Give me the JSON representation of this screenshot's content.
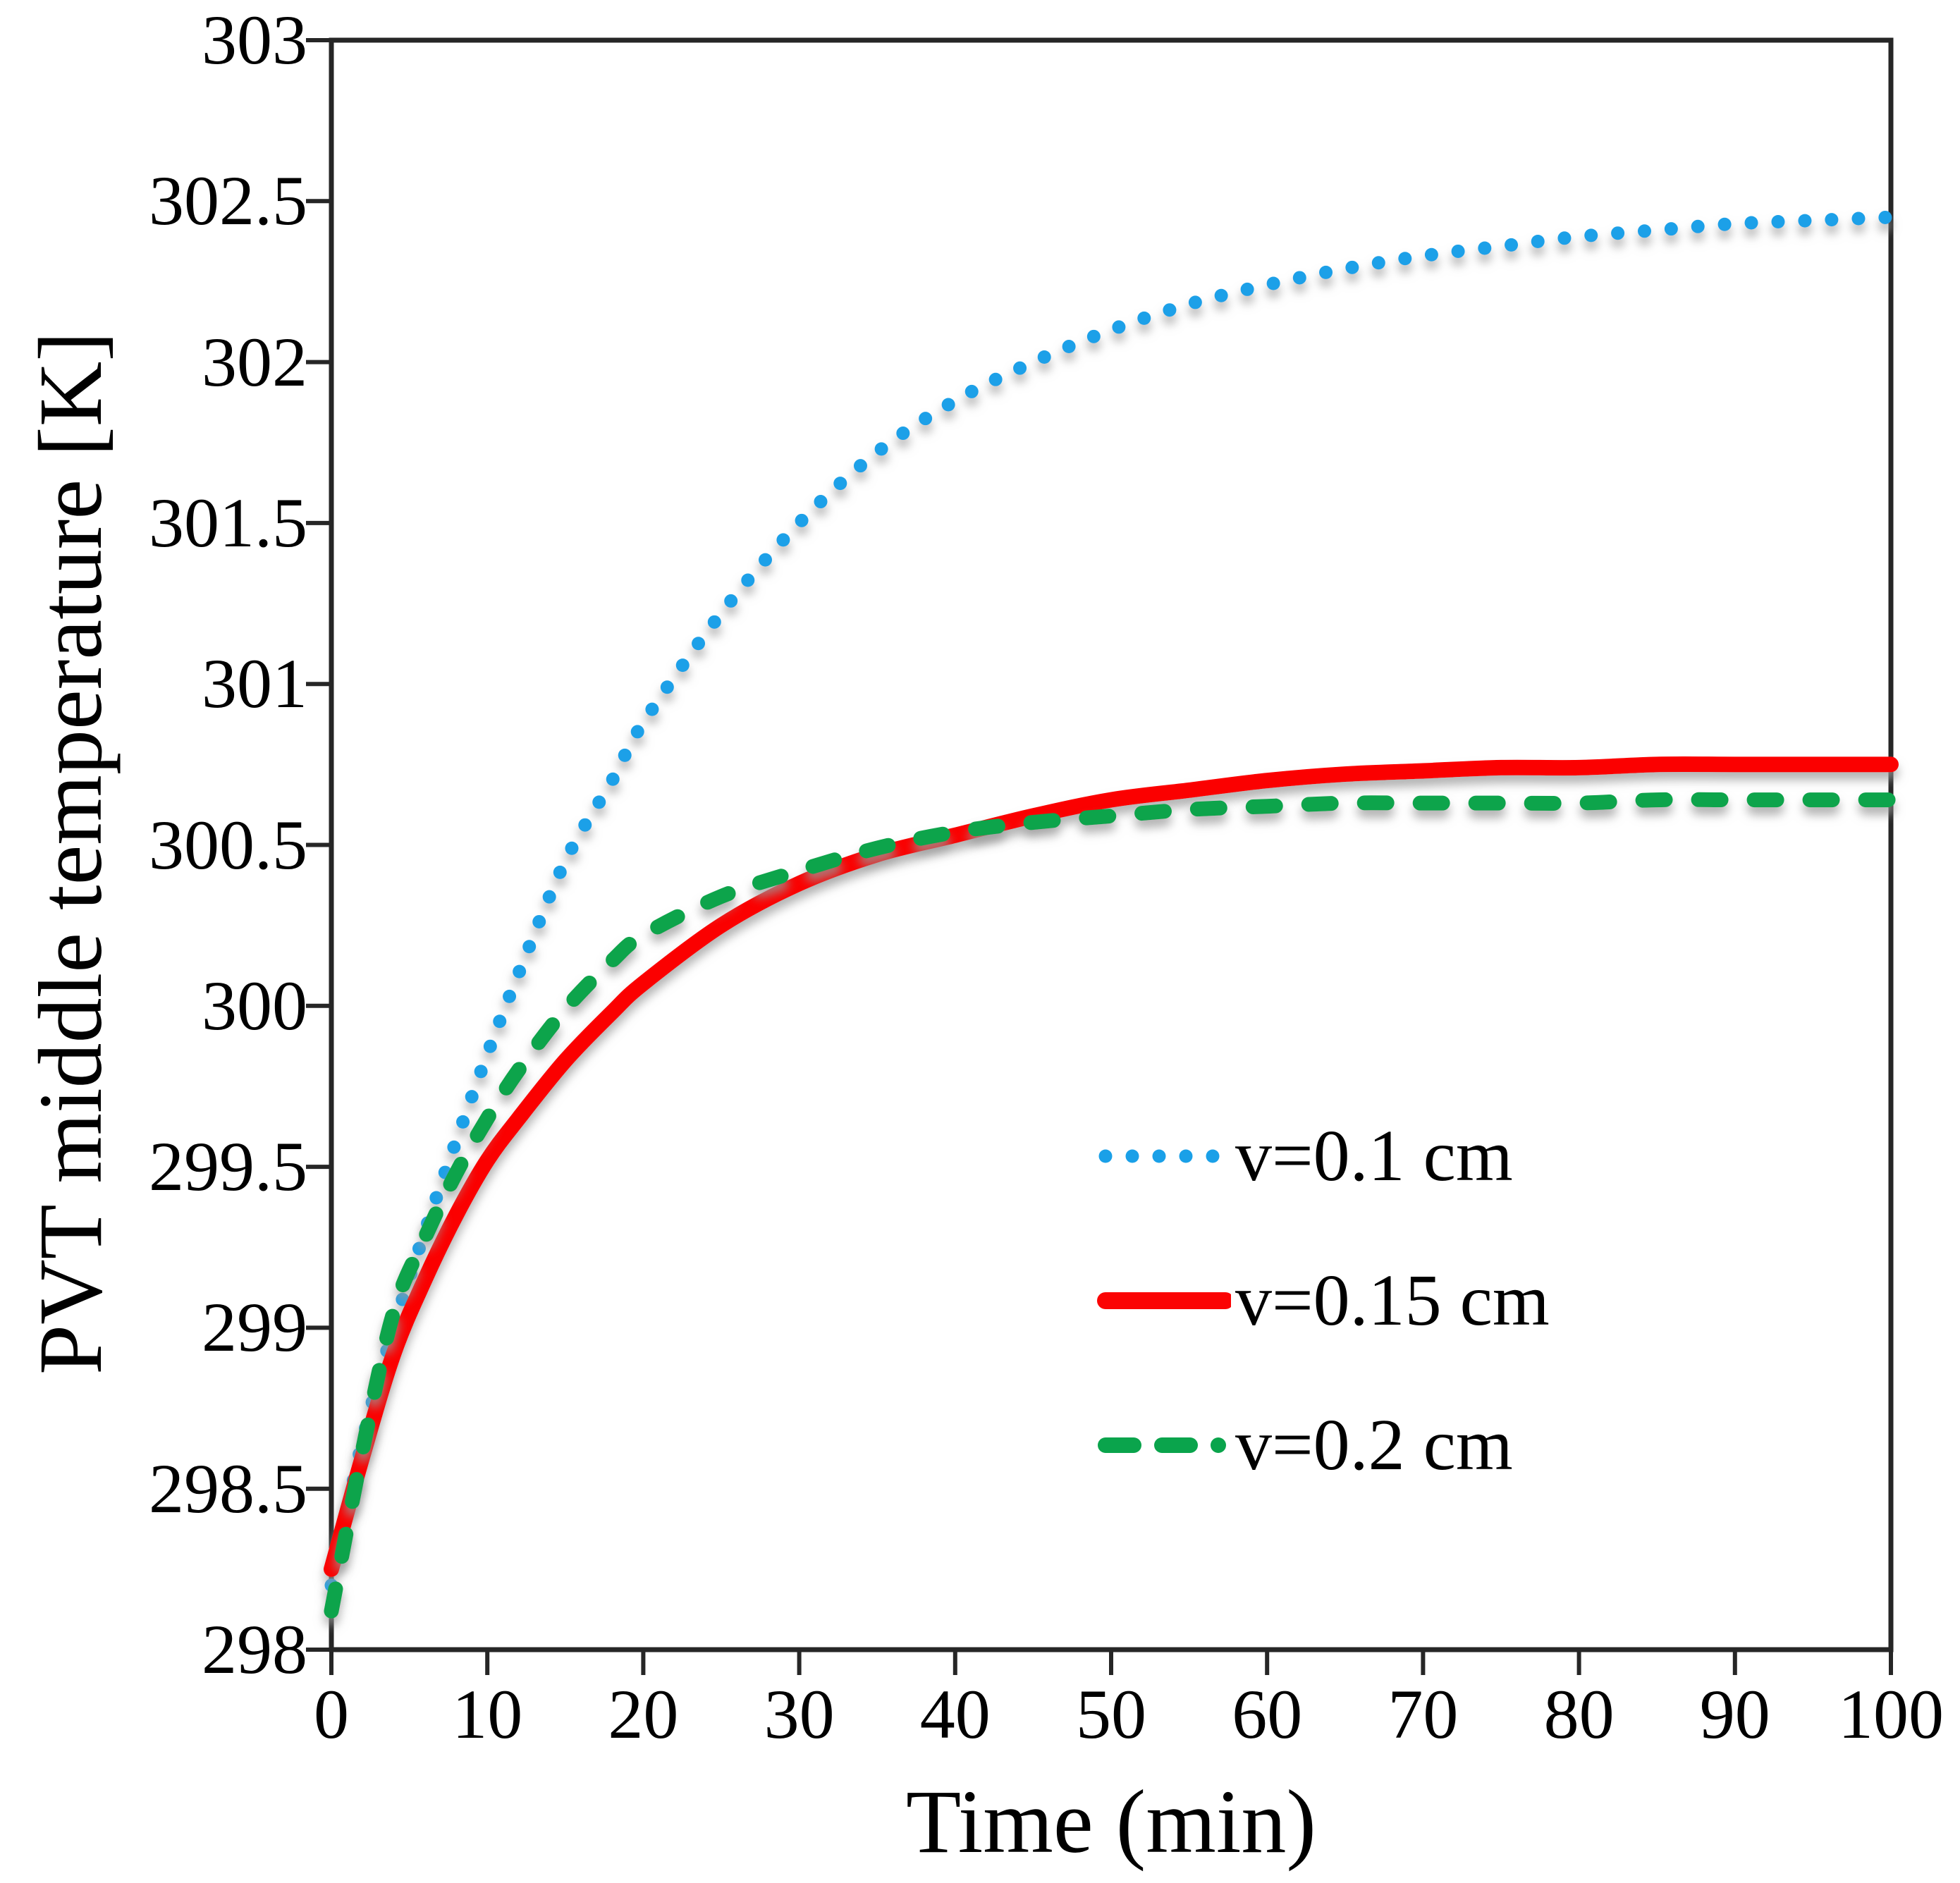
{
  "figure": {
    "background": "#ffffff",
    "axis_color": "#262626",
    "text_color": "#000000",
    "shadow_color": "#9a9a9a"
  },
  "chart_data": {
    "type": "line",
    "title": "",
    "xlabel": "Time (min)",
    "ylabel": "PVT middle temperature [K]",
    "xlim": [
      0,
      100
    ],
    "ylim": [
      298,
      303
    ],
    "xticks": [
      0,
      10,
      20,
      30,
      40,
      50,
      60,
      70,
      80,
      90,
      100
    ],
    "xtick_labels": [
      "0",
      "10",
      "20",
      "30",
      "40",
      "50",
      "60",
      "70",
      "80",
      "90",
      "100"
    ],
    "yticks": [
      298,
      298.5,
      299,
      299.5,
      300,
      300.5,
      301,
      301.5,
      302,
      302.5,
      303
    ],
    "ytick_labels": [
      "298",
      "298.5",
      "299",
      "299.5",
      "300",
      "300.5",
      "301",
      "301.5",
      "302",
      "302.5",
      "303"
    ],
    "grid": false,
    "legend_position": "inside-right-lower",
    "x": [
      0,
      2,
      4,
      6,
      8,
      10,
      12,
      15,
      18,
      20,
      25,
      30,
      35,
      40,
      45,
      50,
      55,
      60,
      65,
      70,
      75,
      80,
      85,
      90,
      95,
      100
    ],
    "series": [
      {
        "name": "v=0.1 cm",
        "color": "#1AA0E8",
        "style": "dotted",
        "values": [
          298.2,
          298.65,
          299.0,
          299.3,
          299.58,
          299.85,
          300.1,
          300.45,
          300.7,
          300.88,
          301.22,
          301.5,
          301.72,
          301.88,
          302.0,
          302.1,
          302.18,
          302.24,
          302.29,
          302.33,
          302.36,
          302.39,
          302.41,
          302.43,
          302.44,
          302.45
        ]
      },
      {
        "name": "v=0.15 cm",
        "color": "#FB0404",
        "style": "solid",
        "values": [
          298.25,
          298.6,
          298.92,
          299.15,
          299.35,
          299.52,
          299.65,
          299.83,
          299.98,
          300.07,
          300.25,
          300.38,
          300.47,
          300.53,
          300.59,
          300.64,
          300.67,
          300.7,
          300.72,
          300.73,
          300.74,
          300.74,
          300.75,
          300.75,
          300.75,
          300.75
        ]
      },
      {
        "name": "v=0.2 cm",
        "color": "#0AA44C",
        "style": "dashed",
        "values": [
          298.12,
          298.62,
          299.05,
          299.28,
          299.48,
          299.65,
          299.8,
          299.99,
          300.14,
          300.22,
          300.34,
          300.42,
          300.49,
          300.54,
          300.57,
          300.59,
          300.61,
          300.62,
          300.63,
          300.63,
          300.63,
          300.63,
          300.64,
          300.64,
          300.64,
          300.64
        ]
      }
    ]
  }
}
